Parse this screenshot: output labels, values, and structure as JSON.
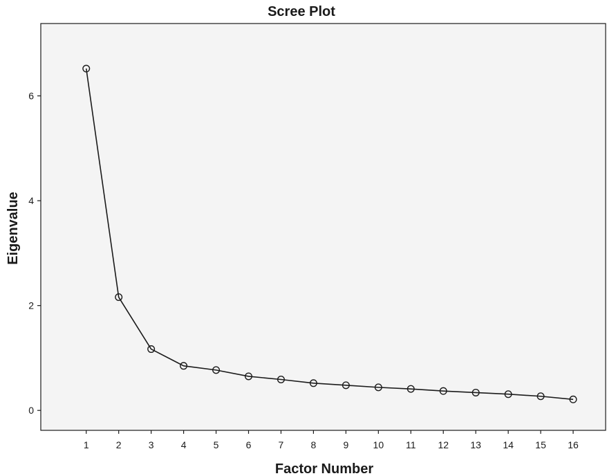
{
  "chart_data": {
    "type": "line",
    "title": "Scree Plot",
    "xlabel": "Factor Number",
    "ylabel": "Eigenvalue",
    "x": [
      1,
      2,
      3,
      4,
      5,
      6,
      7,
      8,
      9,
      10,
      11,
      12,
      13,
      14,
      15,
      16
    ],
    "x_tick_labels": [
      "1",
      "2",
      "3",
      "4",
      "5",
      "6",
      "7",
      "8",
      "9",
      "10",
      "11",
      "12",
      "13",
      "14",
      "15",
      "16"
    ],
    "series": [
      {
        "values": [
          6.52,
          2.16,
          1.17,
          0.85,
          0.77,
          0.65,
          0.59,
          0.52,
          0.48,
          0.44,
          0.41,
          0.37,
          0.34,
          0.31,
          0.27,
          0.21
        ],
        "marker": "open-circle",
        "color": "#1a1a1a"
      }
    ],
    "y_ticks": [
      0,
      2,
      4,
      6
    ],
    "y_tick_labels": [
      "0",
      "2",
      "4",
      "6"
    ],
    "xlim": [
      -0.4,
      17.0
    ],
    "ylim": [
      -0.38,
      7.38
    ],
    "grid": false,
    "legend": "none",
    "plot_background": "#f4f4f4",
    "line_color": "#1a1a1a"
  }
}
